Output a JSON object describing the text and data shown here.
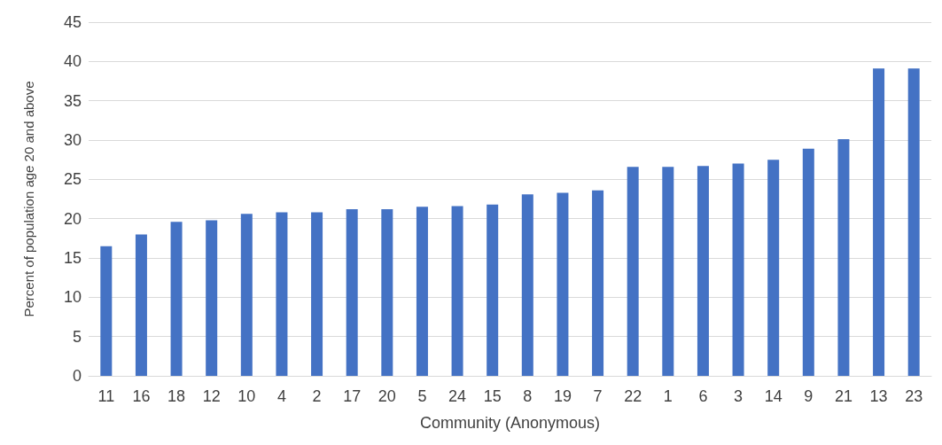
{
  "chart_data": {
    "type": "bar",
    "xlabel": "Community (Anonymous)",
    "ylabel": "Percent of population age 20 and above",
    "categories": [
      "11",
      "16",
      "18",
      "12",
      "10",
      "4",
      "2",
      "17",
      "20",
      "5",
      "24",
      "15",
      "8",
      "19",
      "7",
      "22",
      "1",
      "6",
      "3",
      "14",
      "9",
      "21",
      "13",
      "23"
    ],
    "values": [
      16.5,
      18.0,
      19.6,
      19.8,
      20.6,
      20.8,
      20.8,
      21.2,
      21.2,
      21.5,
      21.6,
      21.8,
      23.1,
      23.3,
      23.6,
      26.6,
      26.6,
      26.7,
      27.0,
      27.5,
      28.9,
      30.1,
      39.1,
      39.1
    ],
    "color": "#4472c4",
    "ylim": [
      0,
      45
    ],
    "yticks": [
      0,
      5,
      10,
      15,
      20,
      25,
      30,
      35,
      40,
      45
    ],
    "grid": "y"
  }
}
